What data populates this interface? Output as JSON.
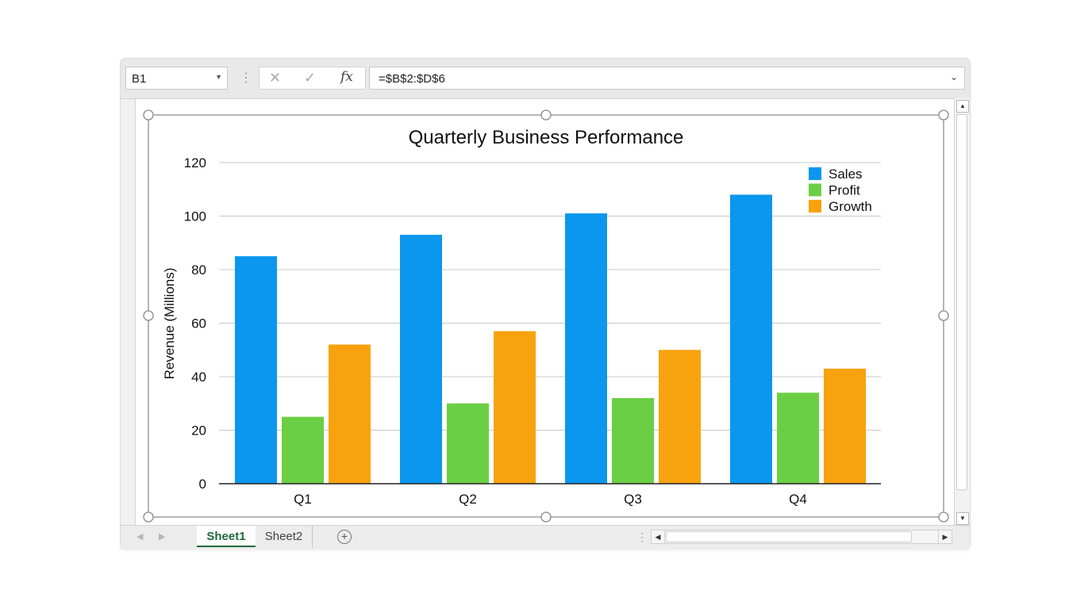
{
  "formula_bar": {
    "name_box": "B1",
    "cancel_icon": "✕",
    "enter_icon": "✓",
    "fx_label": "fx",
    "formula": "=$B$2:$D$6"
  },
  "sheet_tabs": [
    "Sheet1",
    "Sheet2"
  ],
  "active_tab": "Sheet1",
  "colors": {
    "sales": "#0b97ee",
    "profit": "#6bcf45",
    "growth": "#f8a20e",
    "accent": "#1e6b37"
  },
  "chart_data": {
    "type": "bar",
    "title": "Quarterly Business Performance",
    "xlabel": "",
    "ylabel": "Revenue (Millions)",
    "categories": [
      "Q1",
      "Q2",
      "Q3",
      "Q4"
    ],
    "series": [
      {
        "name": "Sales",
        "values": [
          85,
          93,
          101,
          108
        ],
        "color": "#0b97ee"
      },
      {
        "name": "Profit",
        "values": [
          25,
          30,
          32,
          34
        ],
        "color": "#6bcf45"
      },
      {
        "name": "Growth",
        "values": [
          52,
          57,
          50,
          43
        ],
        "color": "#f8a20e"
      }
    ],
    "ylim": [
      0,
      120
    ],
    "yticks": [
      0,
      20,
      40,
      60,
      80,
      100,
      120
    ],
    "grid": true,
    "legend": "top-right"
  }
}
